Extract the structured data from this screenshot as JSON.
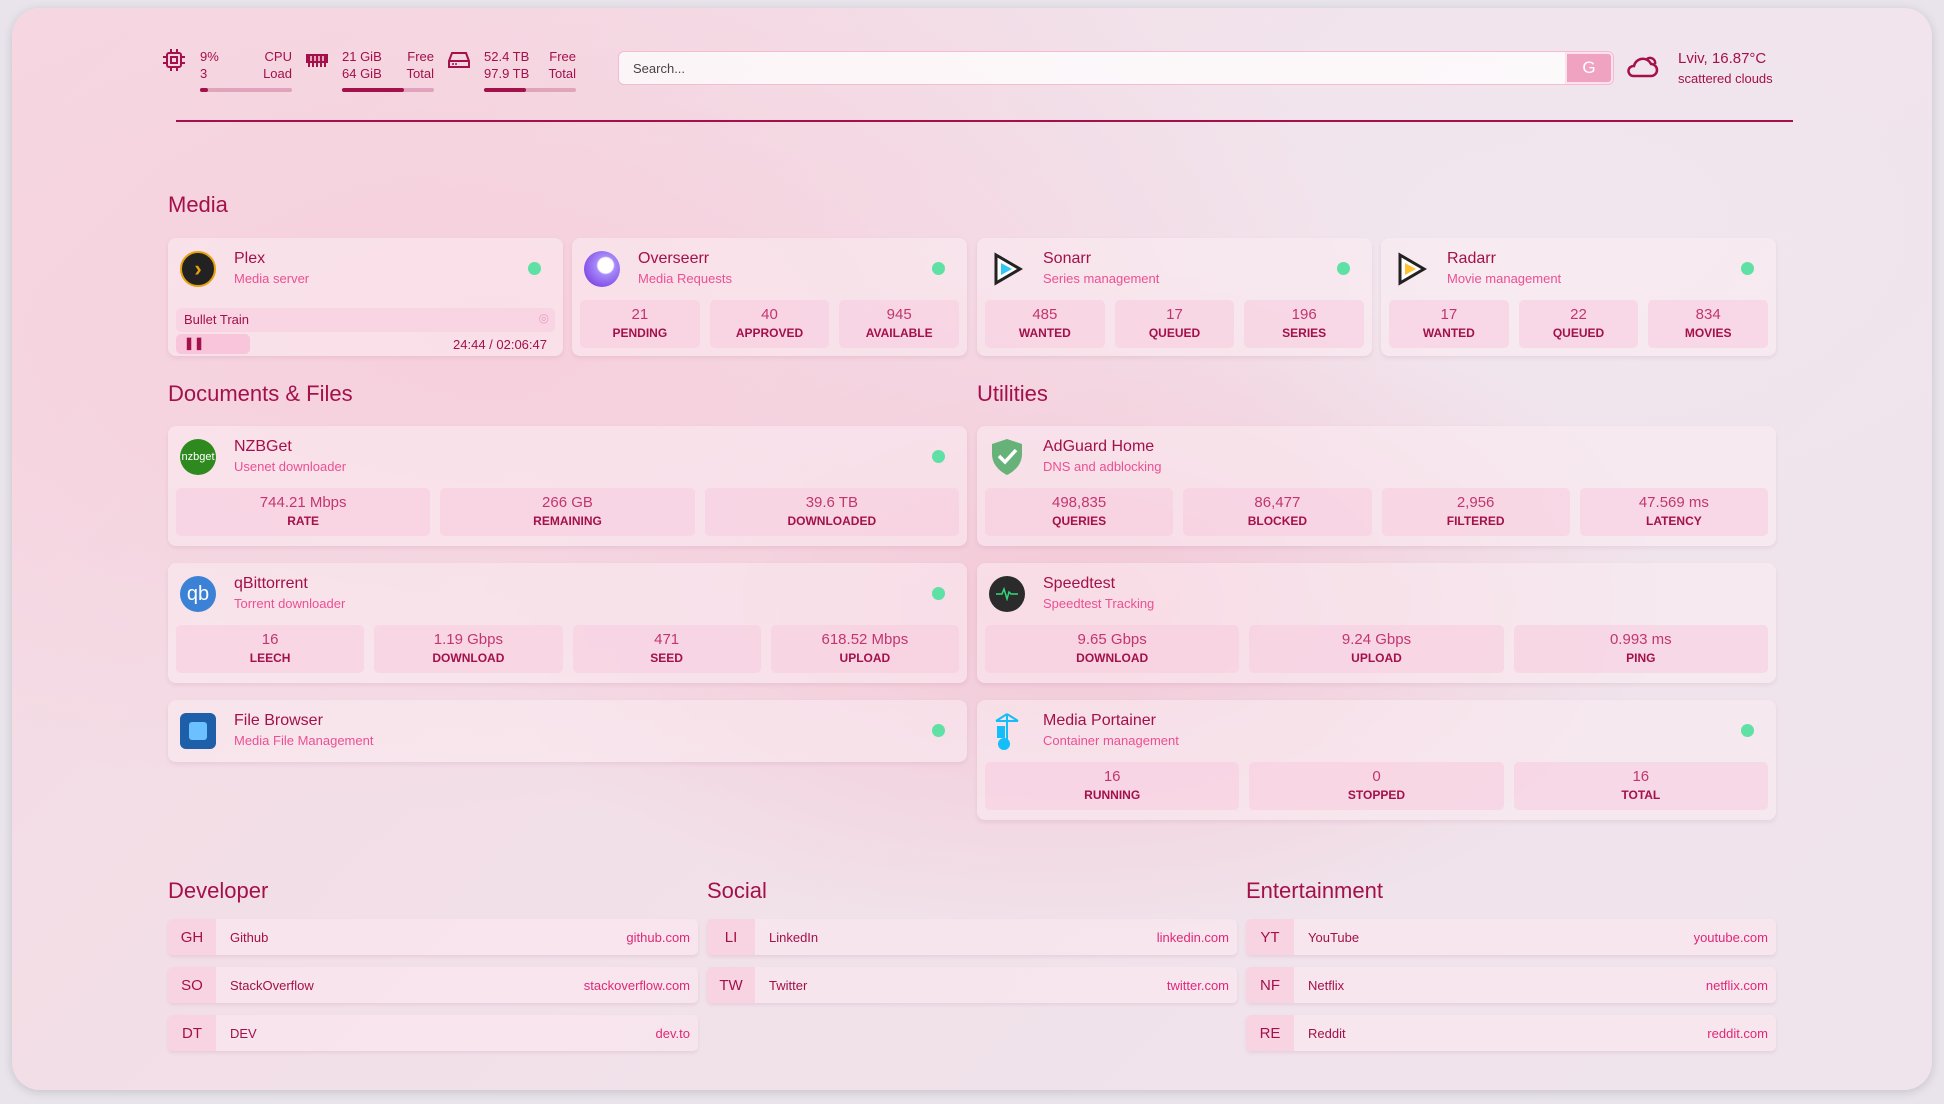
{
  "header": {
    "cpu": {
      "icon": "cpu-icon",
      "value": "9%",
      "cores": "3",
      "label1": "CPU",
      "label2": "Load",
      "percent": 9
    },
    "memory": {
      "icon": "memory-icon",
      "free": "21 GiB",
      "total": "64 GiB",
      "label1": "Free",
      "label2": "Total",
      "percent": 67
    },
    "disk": {
      "icon": "disk-icon",
      "free": "52.4 TB",
      "total": "97.9 TB",
      "label1": "Free",
      "label2": "Total",
      "percent": 46
    },
    "search": {
      "placeholder": "Search...",
      "button": "G"
    },
    "weather": {
      "icon": "cloud-icon",
      "location": "Lviv, 16.87°C",
      "condition": "scattered clouds"
    }
  },
  "media": {
    "title": "Media",
    "services": [
      {
        "name": "Plex",
        "desc": "Media server",
        "now_playing": {
          "title": "Bullet Train",
          "time": "24:44 / 02:06:47",
          "progress": 0.195
        }
      },
      {
        "name": "Overseerr",
        "desc": "Media Requests",
        "stats": [
          {
            "v": "21",
            "l": "PENDING"
          },
          {
            "v": "40",
            "l": "APPROVED"
          },
          {
            "v": "945",
            "l": "AVAILABLE"
          }
        ]
      },
      {
        "name": "Sonarr",
        "desc": "Series management",
        "stats": [
          {
            "v": "485",
            "l": "WANTED"
          },
          {
            "v": "17",
            "l": "QUEUED"
          },
          {
            "v": "196",
            "l": "SERIES"
          }
        ]
      },
      {
        "name": "Radarr",
        "desc": "Movie management",
        "stats": [
          {
            "v": "17",
            "l": "WANTED"
          },
          {
            "v": "22",
            "l": "QUEUED"
          },
          {
            "v": "834",
            "l": "MOVIES"
          }
        ]
      }
    ]
  },
  "documents": {
    "title": "Documents & Files",
    "services": [
      {
        "name": "NZBGet",
        "desc": "Usenet downloader",
        "icon_text": "nzbget",
        "stats": [
          {
            "v": "744.21 Mbps",
            "l": "RATE"
          },
          {
            "v": "266 GB",
            "l": "REMAINING"
          },
          {
            "v": "39.6 TB",
            "l": "DOWNLOADED"
          }
        ]
      },
      {
        "name": "qBittorrent",
        "desc": "Torrent downloader",
        "icon_text": "qb",
        "stats": [
          {
            "v": "16",
            "l": "LEECH"
          },
          {
            "v": "1.19 Gbps",
            "l": "DOWNLOAD"
          },
          {
            "v": "471",
            "l": "SEED"
          },
          {
            "v": "618.52 Mbps",
            "l": "UPLOAD"
          }
        ]
      },
      {
        "name": "File Browser",
        "desc": "Media File Management"
      }
    ]
  },
  "utilities": {
    "title": "Utilities",
    "services": [
      {
        "name": "AdGuard Home",
        "desc": "DNS and adblocking",
        "stats": [
          {
            "v": "498,835",
            "l": "QUERIES"
          },
          {
            "v": "86,477",
            "l": "BLOCKED"
          },
          {
            "v": "2,956",
            "l": "FILTERED"
          },
          {
            "v": "47.569 ms",
            "l": "LATENCY"
          }
        ]
      },
      {
        "name": "Speedtest",
        "desc": "Speedtest Tracking",
        "stats": [
          {
            "v": "9.65 Gbps",
            "l": "DOWNLOAD"
          },
          {
            "v": "9.24 Gbps",
            "l": "UPLOAD"
          },
          {
            "v": "0.993 ms",
            "l": "PING"
          }
        ]
      },
      {
        "name": "Media Portainer",
        "desc": "Container management",
        "stats": [
          {
            "v": "16",
            "l": "RUNNING"
          },
          {
            "v": "0",
            "l": "STOPPED"
          },
          {
            "v": "16",
            "l": "TOTAL"
          }
        ]
      }
    ]
  },
  "bookmarks": [
    {
      "title": "Developer",
      "items": [
        {
          "abbr": "GH",
          "name": "Github",
          "url": "github.com"
        },
        {
          "abbr": "SO",
          "name": "StackOverflow",
          "url": "stackoverflow.com"
        },
        {
          "abbr": "DT",
          "name": "DEV",
          "url": "dev.to"
        }
      ]
    },
    {
      "title": "Social",
      "items": [
        {
          "abbr": "LI",
          "name": "LinkedIn",
          "url": "linkedin.com"
        },
        {
          "abbr": "TW",
          "name": "Twitter",
          "url": "twitter.com"
        }
      ]
    },
    {
      "title": "Entertainment",
      "items": [
        {
          "abbr": "YT",
          "name": "YouTube",
          "url": "youtube.com"
        },
        {
          "abbr": "NF",
          "name": "Netflix",
          "url": "netflix.com"
        },
        {
          "abbr": "RE",
          "name": "Reddit",
          "url": "reddit.com"
        }
      ]
    }
  ],
  "colors": {
    "accent": "#a3104a",
    "subtitle": "#ec4f94",
    "status_up": "#5fe0a4"
  }
}
